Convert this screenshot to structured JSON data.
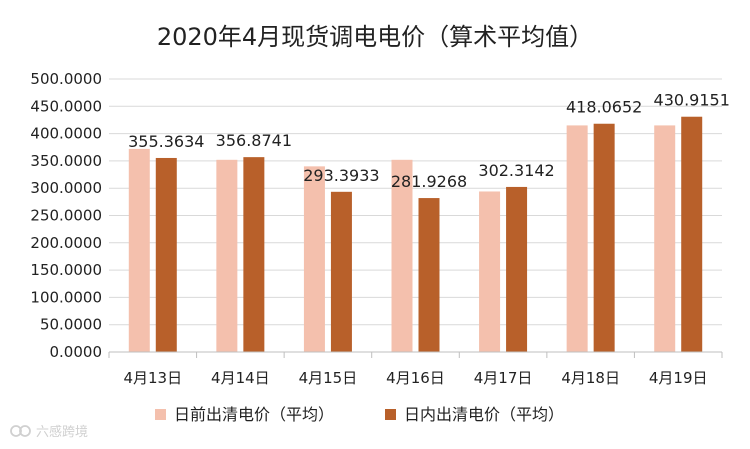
{
  "chart_data": {
    "type": "bar",
    "title": "2020年4月现货调电电价（算术平均值）",
    "categories": [
      "4月13日",
      "4月14日",
      "4月15日",
      "4月16日",
      "4月17日",
      "4月18日",
      "4月19日"
    ],
    "series": [
      {
        "name": "日前出清电价（平均）",
        "color": "#f4c0ad",
        "values": [
          372,
          352,
          340,
          352,
          294,
          415,
          415
        ],
        "labels": []
      },
      {
        "name": "日内出清电价（平均）",
        "color": "#b8602a",
        "values": [
          355.3634,
          356.8741,
          293.3933,
          281.9268,
          302.3142,
          418.0652,
          430.9151
        ],
        "labels": [
          "355.3634",
          "356.8741",
          "293.3933",
          "281.9268",
          "302.3142",
          "418.0652",
          "430.9151"
        ]
      }
    ],
    "ylim": [
      0,
      500
    ],
    "yticks": [
      "0.0000",
      "50.0000",
      "100.0000",
      "150.0000",
      "200.0000",
      "250.0000",
      "300.0000",
      "350.0000",
      "400.0000",
      "450.0000",
      "500.0000"
    ],
    "grid": true,
    "legend_position": "bottom"
  },
  "watermark": {
    "icon": "chain-link-icon",
    "text": "六感跨境"
  }
}
